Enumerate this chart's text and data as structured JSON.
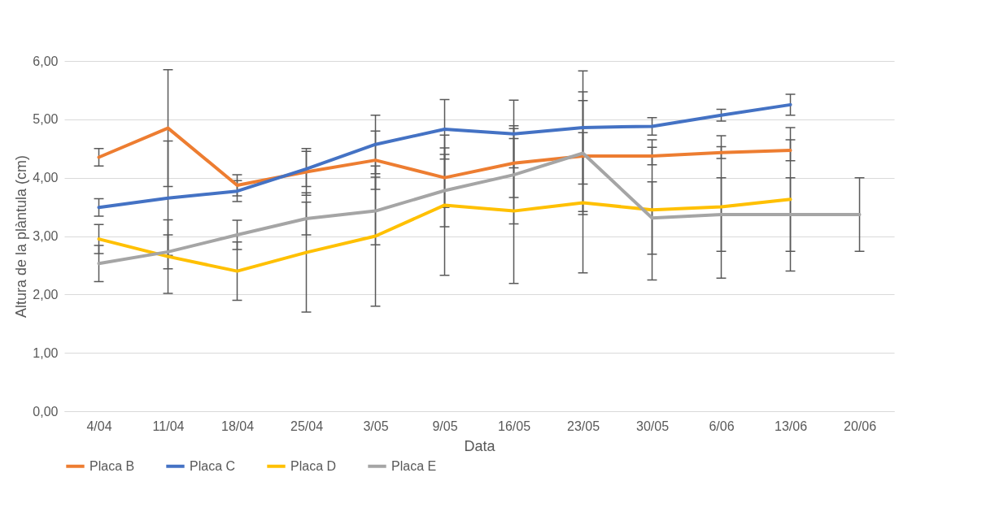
{
  "chart_data": {
    "type": "line",
    "xlabel": "Data",
    "ylabel": "Altura de la plàntula (cm)",
    "categories": [
      "4/04",
      "11/04",
      "18/04",
      "25/04",
      "3/05",
      "9/05",
      "16/05",
      "23/05",
      "30/05",
      "6/06",
      "13/06",
      "20/06"
    ],
    "series": [
      {
        "name": "Placa B",
        "color": "#ed7d31",
        "values": [
          4.35,
          4.85,
          3.87,
          4.1,
          4.3,
          4.0,
          4.25,
          4.37,
          4.37,
          4.43,
          4.47,
          null
        ],
        "errors": [
          0.15,
          1.0,
          0.18,
          0.4,
          0.5,
          0.51,
          0.59,
          0.95,
          0.15,
          0.1,
          0.18,
          null
        ]
      },
      {
        "name": "Placa C",
        "color": "#4472c4",
        "values": [
          3.49,
          3.65,
          3.77,
          4.15,
          4.57,
          4.83,
          4.75,
          4.86,
          4.88,
          5.07,
          5.25,
          null
        ],
        "errors": [
          0.15,
          0.98,
          0.18,
          0.3,
          0.5,
          0.51,
          0.58,
          0.97,
          0.15,
          0.1,
          0.18,
          null
        ]
      },
      {
        "name": "Placa D",
        "color": "#ffc000",
        "values": [
          2.95,
          2.65,
          2.4,
          2.72,
          3.0,
          3.53,
          3.43,
          3.57,
          3.45,
          3.5,
          3.63,
          null
        ],
        "errors": [
          0.25,
          0.63,
          0.5,
          1.02,
          1.2,
          1.2,
          1.24,
          1.2,
          1.2,
          1.22,
          1.23,
          null
        ]
      },
      {
        "name": "Placa E",
        "color": "#a5a5a5",
        "values": [
          2.53,
          2.73,
          3.02,
          3.3,
          3.43,
          3.78,
          4.05,
          4.42,
          3.31,
          3.37,
          3.37,
          3.37
        ],
        "errors": [
          0.31,
          0.29,
          0.25,
          0.28,
          0.58,
          0.62,
          0.84,
          1.05,
          0.62,
          0.63,
          0.63,
          0.63
        ]
      }
    ],
    "ylim": [
      0,
      6
    ],
    "yticks": [
      {
        "value": 0,
        "label": "0,00"
      },
      {
        "value": 1,
        "label": "1,00"
      },
      {
        "value": 2,
        "label": "2,00"
      },
      {
        "value": 3,
        "label": "3,00"
      },
      {
        "value": 4,
        "label": "4,00"
      },
      {
        "value": 5,
        "label": "5,00"
      },
      {
        "value": 6,
        "label": "6,00"
      }
    ],
    "grid": "y",
    "legend": "bottom",
    "marker": "none",
    "line_style": "solid"
  }
}
